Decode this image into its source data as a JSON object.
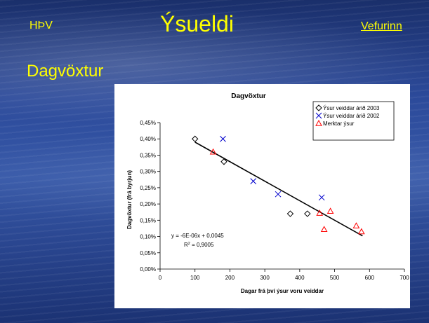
{
  "slide": {
    "org_label": "HÞV",
    "title": "Ýsueldi",
    "nav_link": "Vefurinn",
    "heading": "Dagvöxtur",
    "accent_color": "#ffff00"
  },
  "chart_data": {
    "type": "scatter",
    "title": "Dagvöxtur",
    "xlabel": "Dagar frá því ýsur voru veiddar",
    "ylabel": "Dagvöxtur (frá byrjun)",
    "xlim": [
      0,
      700
    ],
    "ylim": [
      0,
      0.0045
    ],
    "x_ticks": [
      "0",
      "100",
      "200",
      "300",
      "400",
      "500",
      "600",
      "700"
    ],
    "y_ticks": [
      "0,00%",
      "0,05%",
      "0,10%",
      "0,15%",
      "0,20%",
      "0,25%",
      "0,30%",
      "0,35%",
      "0,40%",
      "0,45%"
    ],
    "series": [
      {
        "name": "Ýsur veiddar árið 2003",
        "marker": "diamond",
        "color": "#000000",
        "points": [
          [
            100,
            0.004
          ],
          [
            183,
            0.0033
          ],
          [
            373,
            0.0017
          ],
          [
            422,
            0.0017
          ]
        ]
      },
      {
        "name": "Ýsur veiddar árið 2002",
        "marker": "x",
        "color": "#0000cc",
        "points": [
          [
            180,
            0.004
          ],
          [
            267,
            0.0027
          ],
          [
            338,
            0.0023
          ],
          [
            463,
            0.0022
          ]
        ]
      },
      {
        "name": "Merktar ýsur",
        "marker": "triangle",
        "color": "#ff0000",
        "points": [
          [
            152,
            0.0036
          ],
          [
            457,
            0.00172
          ],
          [
            470,
            0.00122
          ],
          [
            488,
            0.00178
          ],
          [
            562,
            0.00133
          ],
          [
            577,
            0.00115
          ]
        ]
      }
    ],
    "trendline": {
      "x_range": [
        100,
        580
      ],
      "slope": -6e-06,
      "intercept": 0.0045,
      "equation": "y = -6E-06x + 0,0045",
      "r2_prefix": "R",
      "r2_sup": "2",
      "r2_value": " = 0,9005"
    },
    "grid": false,
    "legend_position": "top-right"
  }
}
